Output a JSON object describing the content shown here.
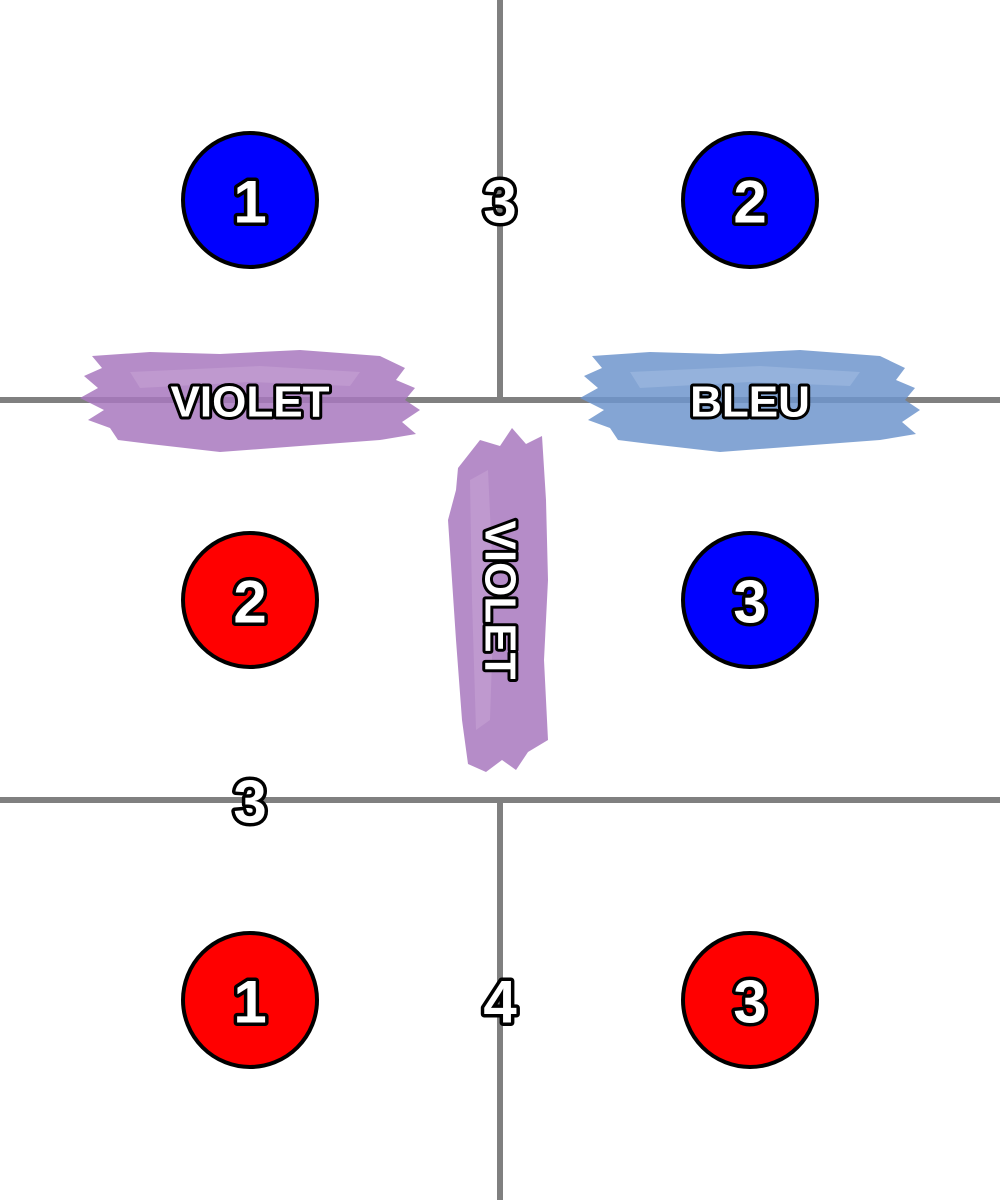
{
  "palette": {
    "grid": "#808080",
    "blue": "#0000ff",
    "red": "#ff0000",
    "violet_brush": "#a878be",
    "blue_brush": "#6f95cc"
  },
  "circles": [
    {
      "id": "circle-blue-1",
      "color": "blue",
      "label": "1"
    },
    {
      "id": "circle-blue-2",
      "color": "blue",
      "label": "2"
    },
    {
      "id": "circle-red-2",
      "color": "red",
      "label": "2"
    },
    {
      "id": "circle-blue-3",
      "color": "blue",
      "label": "3"
    },
    {
      "id": "circle-red-1",
      "color": "red",
      "label": "1"
    },
    {
      "id": "circle-red-3",
      "color": "red",
      "label": "3"
    }
  ],
  "edge_numbers": [
    {
      "id": "edge-number-top",
      "label": "3"
    },
    {
      "id": "edge-number-left",
      "label": "3"
    },
    {
      "id": "edge-number-bottom",
      "label": "4"
    }
  ],
  "brush_labels": [
    {
      "id": "brush-violet-left",
      "label": "VIOLET",
      "color": "violet_brush"
    },
    {
      "id": "brush-bleu-right",
      "label": "BLEU",
      "color": "blue_brush"
    },
    {
      "id": "brush-violet-center",
      "label": "VIOLET",
      "color": "violet_brush"
    }
  ]
}
